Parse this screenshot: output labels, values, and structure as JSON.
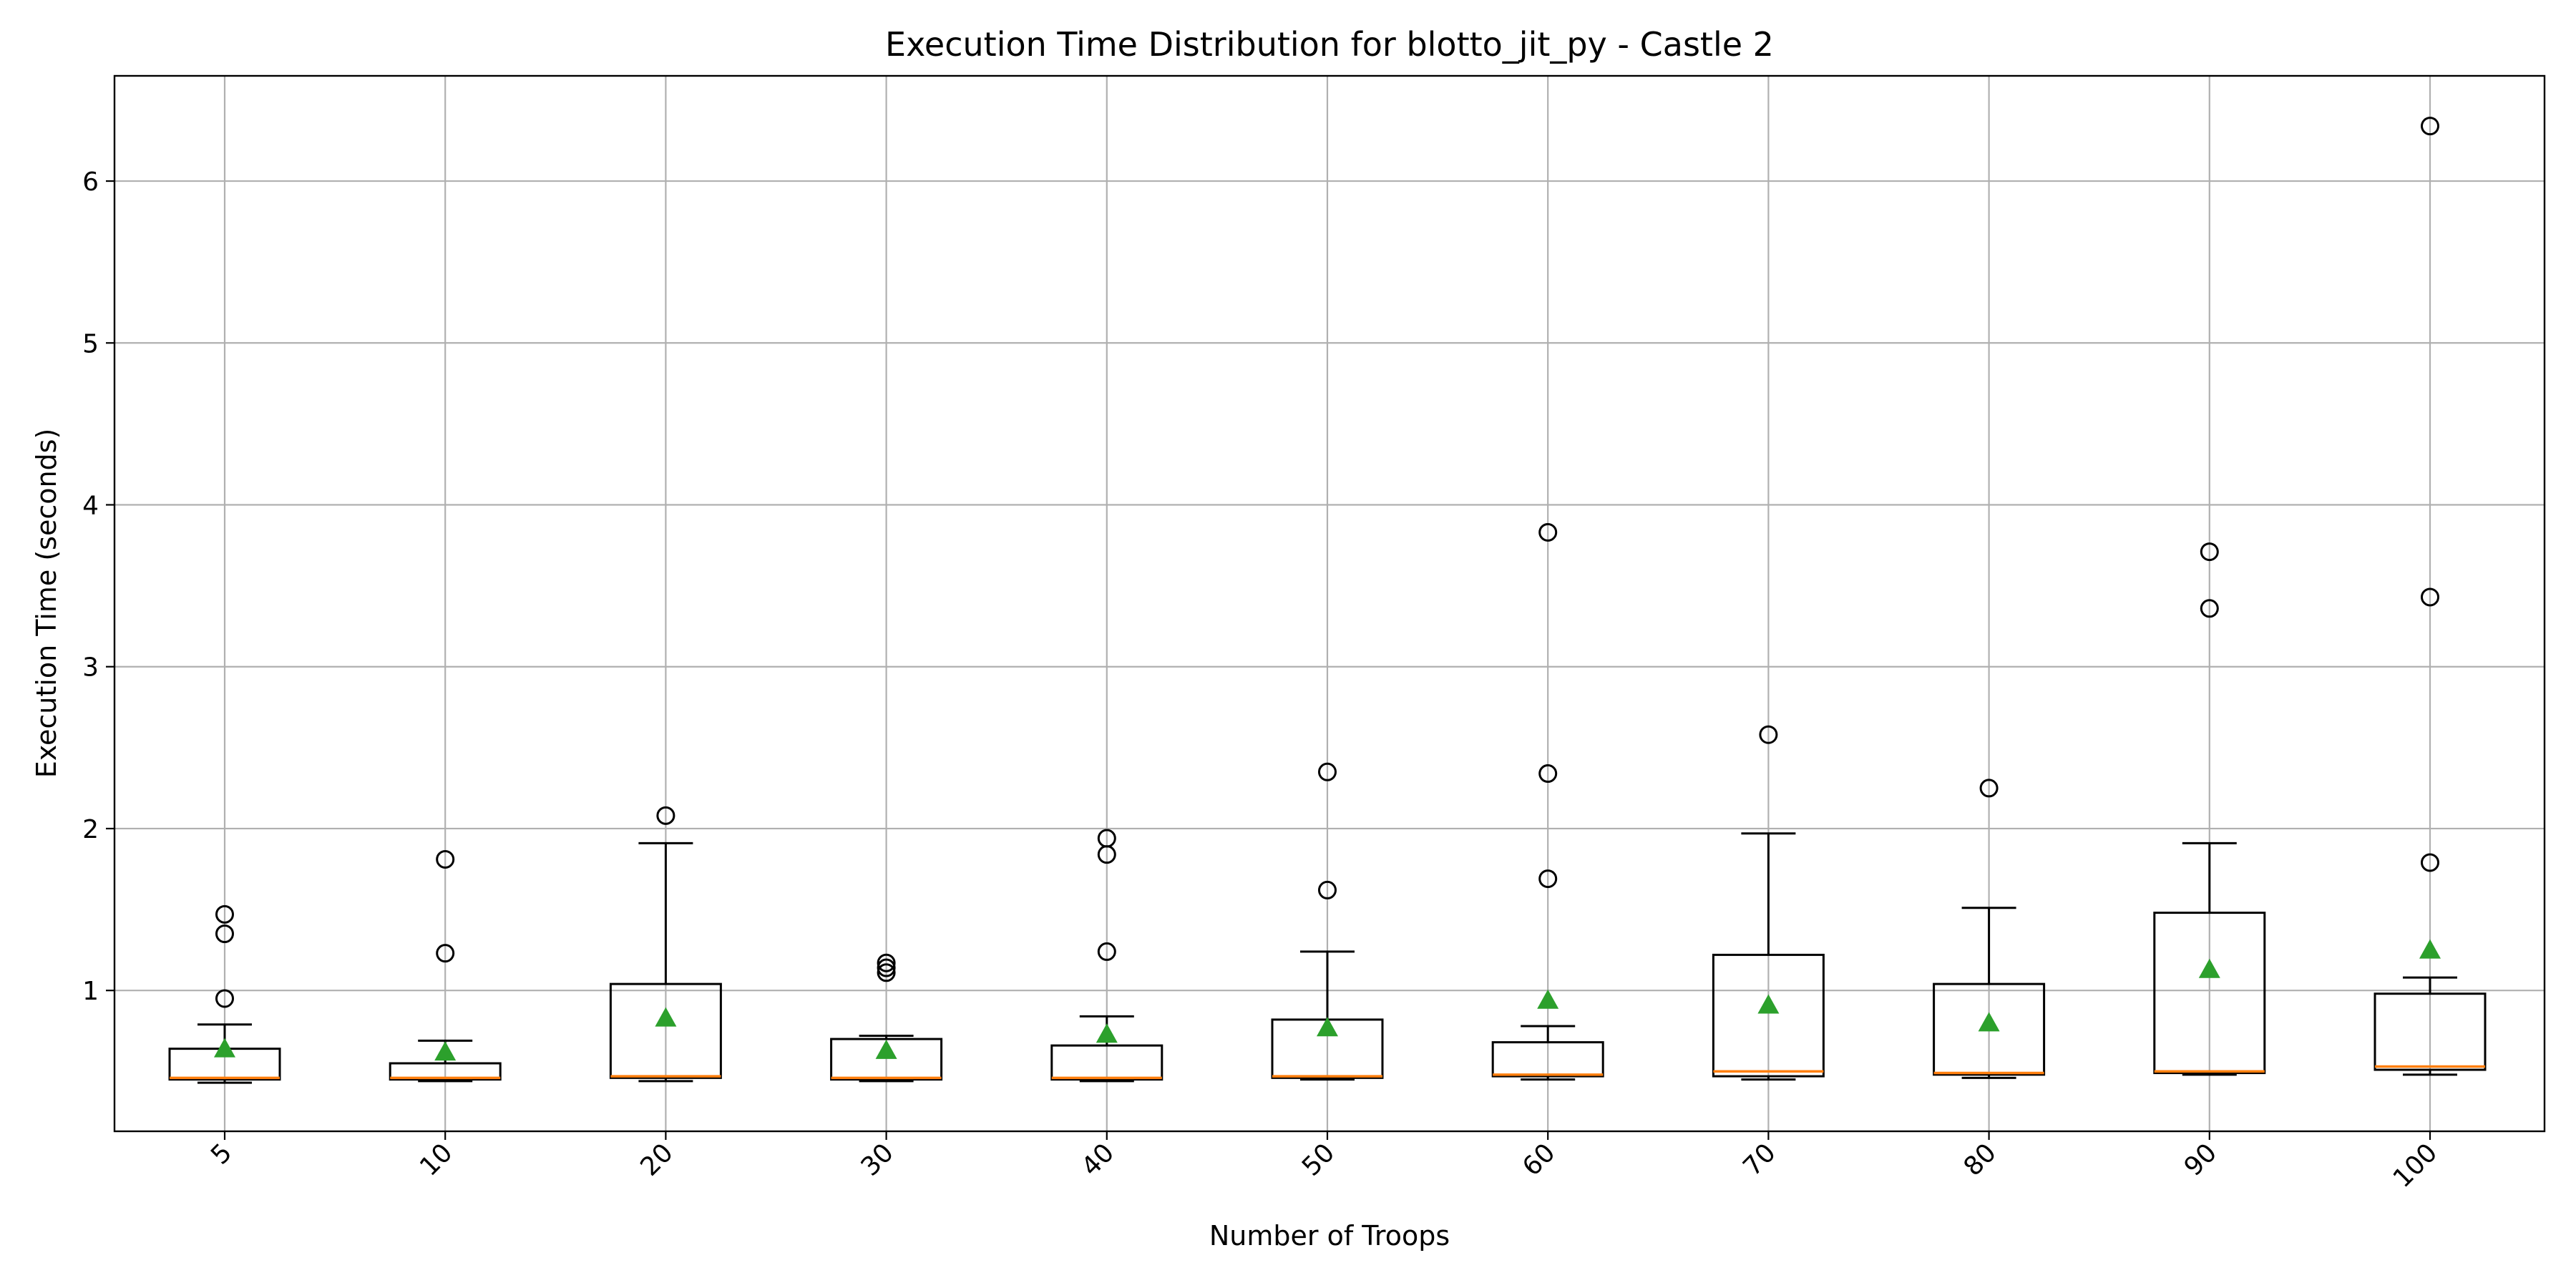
{
  "chart_data": {
    "type": "box",
    "title": "Execution Time Distribution for blotto_jit_py - Castle 2",
    "xlabel": "Number of Troops",
    "ylabel": "Execution Time (seconds)",
    "ylim": [
      0.13,
      6.65
    ],
    "yticks": [
      1,
      2,
      3,
      4,
      5,
      6
    ],
    "grid": true,
    "colors": {
      "median": "#ff7f0e",
      "mean": "#2ca02c",
      "box": "#000000",
      "grid": "#b0b0b0"
    },
    "categories": [
      "5",
      "10",
      "20",
      "30",
      "40",
      "50",
      "60",
      "70",
      "80",
      "90",
      "100"
    ],
    "boxes": [
      {
        "category": "5",
        "whislo": 0.43,
        "q1": 0.45,
        "med": 0.46,
        "q3": 0.64,
        "whishi": 0.79,
        "mean": 0.64,
        "fliers": [
          0.95,
          1.35,
          1.47
        ]
      },
      {
        "category": "10",
        "whislo": 0.44,
        "q1": 0.45,
        "med": 0.46,
        "q3": 0.55,
        "whishi": 0.69,
        "mean": 0.62,
        "fliers": [
          1.23,
          1.81
        ]
      },
      {
        "category": "20",
        "whislo": 0.44,
        "q1": 0.46,
        "med": 0.47,
        "q3": 1.04,
        "whishi": 1.91,
        "mean": 0.83,
        "fliers": [
          2.08
        ]
      },
      {
        "category": "30",
        "whislo": 0.44,
        "q1": 0.45,
        "med": 0.46,
        "q3": 0.7,
        "whishi": 0.72,
        "mean": 0.63,
        "fliers": [
          1.11,
          1.14,
          1.17
        ]
      },
      {
        "category": "40",
        "whislo": 0.44,
        "q1": 0.45,
        "med": 0.46,
        "q3": 0.66,
        "whishi": 0.84,
        "mean": 0.73,
        "fliers": [
          1.24,
          1.84,
          1.94
        ]
      },
      {
        "category": "50",
        "whislo": 0.45,
        "q1": 0.46,
        "med": 0.47,
        "q3": 0.82,
        "whishi": 1.24,
        "mean": 0.77,
        "fliers": [
          1.62,
          2.35
        ]
      },
      {
        "category": "60",
        "whislo": 0.45,
        "q1": 0.47,
        "med": 0.48,
        "q3": 0.68,
        "whishi": 0.78,
        "mean": 0.94,
        "fliers": [
          1.69,
          2.34,
          3.83
        ]
      },
      {
        "category": "70",
        "whislo": 0.45,
        "q1": 0.47,
        "med": 0.5,
        "q3": 1.22,
        "whishi": 1.97,
        "mean": 0.91,
        "fliers": [
          2.58
        ]
      },
      {
        "category": "80",
        "whislo": 0.46,
        "q1": 0.48,
        "med": 0.49,
        "q3": 1.04,
        "whishi": 1.51,
        "mean": 0.8,
        "fliers": [
          2.25
        ]
      },
      {
        "category": "90",
        "whislo": 0.48,
        "q1": 0.49,
        "med": 0.5,
        "q3": 1.48,
        "whishi": 1.91,
        "mean": 1.13,
        "fliers": [
          3.36,
          3.71
        ]
      },
      {
        "category": "100",
        "whislo": 0.48,
        "q1": 0.51,
        "med": 0.53,
        "q3": 0.98,
        "whishi": 1.08,
        "mean": 1.25,
        "fliers": [
          1.79,
          3.43,
          6.34
        ]
      }
    ]
  }
}
